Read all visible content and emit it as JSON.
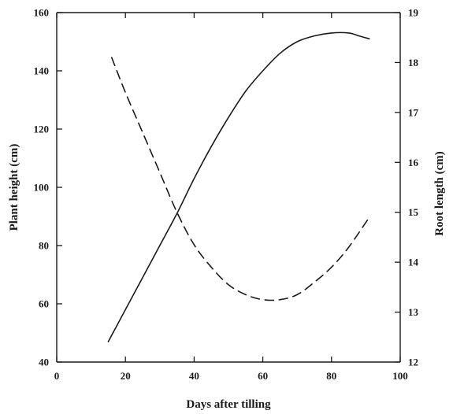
{
  "chart_data": {
    "type": "line",
    "title": "",
    "xlabel": "Days after tilling",
    "ylabel": "Plant height (cm)",
    "y2label": "Root length (cm)",
    "xlim": [
      0,
      100
    ],
    "ylim": [
      40,
      160
    ],
    "y2lim": [
      12,
      19
    ],
    "x_ticks": [
      0,
      20,
      40,
      60,
      80,
      100
    ],
    "y_ticks": [
      40,
      60,
      80,
      100,
      120,
      140,
      160
    ],
    "y2_ticks": [
      12,
      13,
      14,
      15,
      16,
      17,
      18,
      19
    ],
    "grid": false,
    "legend": "none",
    "series": [
      {
        "axis": "left",
        "style": "solid",
        "color": "#1a1a1a",
        "x": [
          15,
          20,
          25,
          30,
          35,
          40,
          45,
          50,
          55,
          60,
          65,
          70,
          75,
          80,
          85,
          88,
          91
        ],
        "y": [
          47,
          58,
          69,
          80,
          91,
          103,
          114,
          124,
          133,
          140,
          146,
          150,
          152,
          153,
          153,
          152,
          151
        ]
      },
      {
        "axis": "right",
        "style": "dashed",
        "color": "#1a1a1a",
        "x": [
          16,
          20,
          25,
          30,
          35,
          40,
          45,
          50,
          55,
          60,
          65,
          70,
          75,
          80,
          85,
          91
        ],
        "y": [
          18.1,
          17.4,
          16.6,
          15.8,
          15.0,
          14.35,
          13.9,
          13.55,
          13.35,
          13.25,
          13.25,
          13.35,
          13.6,
          13.9,
          14.3,
          14.9
        ]
      }
    ]
  }
}
